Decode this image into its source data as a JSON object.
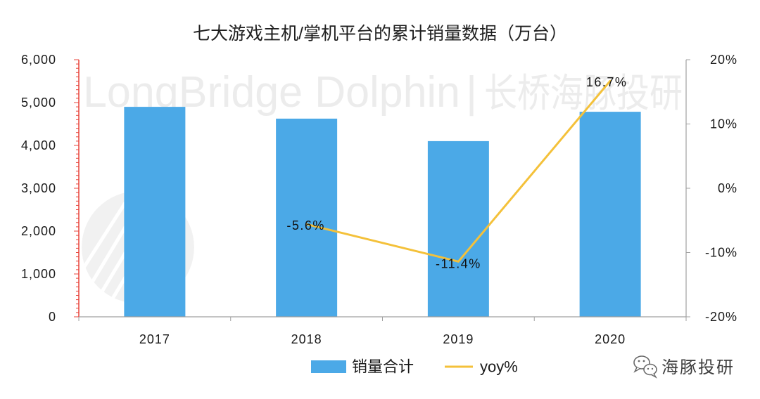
{
  "chart_data": {
    "type": "bar",
    "title": "七大游戏主机/掌机平台的累计销量数据（万台）",
    "categories": [
      "2017",
      "2018",
      "2019",
      "2020"
    ],
    "series": [
      {
        "name": "销量合计",
        "type": "bar",
        "color": "#4BA9E7",
        "values": [
          4900,
          4625,
          4100,
          4785
        ]
      },
      {
        "name": "yoy%",
        "type": "line",
        "color": "#F4C13A",
        "values": [
          null,
          -5.6,
          -11.4,
          16.7
        ],
        "data_labels": [
          null,
          "-5.6%",
          "-11.4%",
          "16.7%"
        ]
      }
    ],
    "left_axis": {
      "ylim": [
        0,
        6000
      ],
      "tick_values": [
        0,
        1000,
        2000,
        3000,
        4000,
        5000,
        6000
      ],
      "tick_labels": [
        "0",
        "1,000",
        "2,000",
        "3,000",
        "4,000",
        "5,000",
        "6,000"
      ],
      "axis_color": "#E8453C"
    },
    "right_axis": {
      "ylim": [
        -20,
        20
      ],
      "tick_values": [
        -20,
        -10,
        0,
        10,
        20
      ],
      "tick_labels": [
        "-20%",
        "-10%",
        "0%",
        "10%",
        "20%"
      ],
      "axis_color": "#A0A0A0"
    },
    "grid": false,
    "legend_position": "bottom"
  },
  "watermark": {
    "text": "LongBridge Dolphin",
    "separator": "|",
    "cn_text": "长桥海豚投研"
  },
  "footer": {
    "icon": "wechat-icon",
    "brand": "海豚投研"
  }
}
